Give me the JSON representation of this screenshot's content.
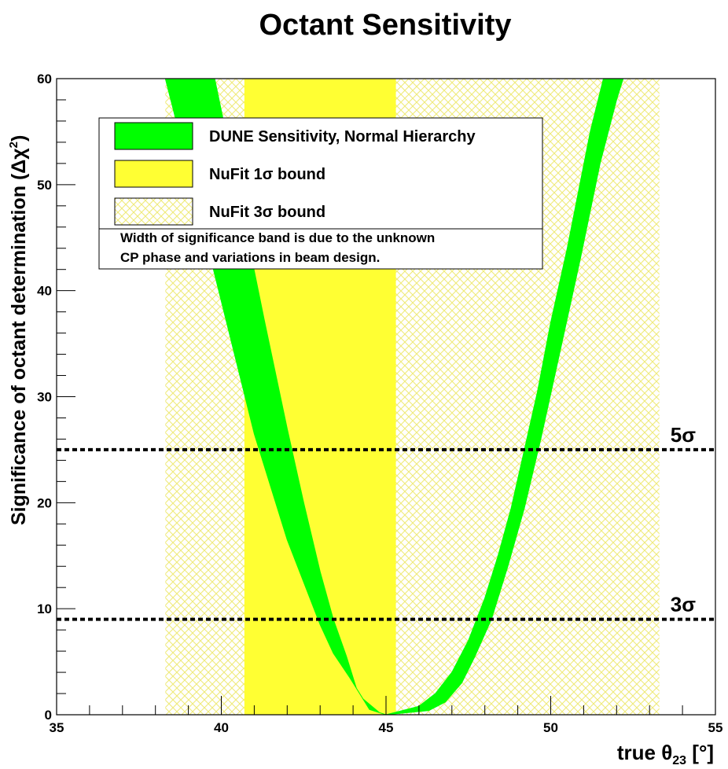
{
  "chart_data": {
    "type": "area",
    "title": "Octant Sensitivity",
    "xlabel": "true θ",
    "xlabel_sub": "23",
    "xlabel_unit": " [°]",
    "ylabel": "Significance of octant determination (Δχ",
    "ylabel_sup": "2",
    "ylabel_close": ")",
    "xlim": [
      35,
      55
    ],
    "ylim": [
      0,
      60
    ],
    "x_ticks": [
      "35",
      "40",
      "45",
      "50",
      "55"
    ],
    "y_ticks": [
      "0",
      "10",
      "20",
      "30",
      "40",
      "50",
      "60"
    ],
    "legend_placement": "top-left",
    "bands": [
      {
        "name": "NuFit 3σ bound",
        "range": [
          38.3,
          53.3
        ],
        "fill": "hatch",
        "color": "#ffff66"
      },
      {
        "name": "NuFit 1σ bound",
        "range": [
          40.7,
          45.3
        ],
        "fill": "solid",
        "color": "#ffff33"
      }
    ],
    "lines": [
      {
        "label": "5σ",
        "value": 25
      },
      {
        "label": "3σ",
        "value": 9
      }
    ],
    "series": [
      {
        "name": "DUNE Sensitivity, Normal Hierarchy",
        "color": "#00ff00",
        "left_lower": {
          "x": [
            38.3,
            39.0,
            40.0,
            41.0,
            42.0,
            43.0,
            43.4,
            43.9,
            44.3,
            44.8,
            45.0
          ],
          "y": [
            60,
            51.5,
            39,
            26.5,
            16.5,
            8.5,
            5.8,
            3.5,
            1.5,
            0.2,
            0
          ]
        },
        "left_upper": {
          "x": [
            39.8,
            40.5,
            41.3,
            42.0,
            42.5,
            43.0,
            43.4,
            43.8,
            44.1,
            44.5,
            45.0
          ],
          "y": [
            60,
            49.5,
            37.3,
            27,
            20,
            13.5,
            9,
            5.5,
            2.5,
            0.5,
            0
          ]
        },
        "right_upper": {
          "x": [
            45.0,
            46.0,
            46.5,
            47.0,
            47.5,
            48.0,
            48.4,
            48.8,
            49.2,
            49.6,
            50.0,
            50.5,
            51.2,
            51.6
          ],
          "y": [
            0,
            0.8,
            2.0,
            4.0,
            7.0,
            11.0,
            15.0,
            19.5,
            25.0,
            30.5,
            37.0,
            44.0,
            55.0,
            60
          ]
        },
        "right_lower": {
          "x": [
            45.0,
            46.3,
            46.8,
            47.3,
            47.7,
            48.2,
            48.7,
            49.2,
            49.7,
            50.3,
            50.9,
            51.5,
            52.0,
            52.2
          ],
          "y": [
            0,
            0.4,
            1.2,
            3.0,
            5.5,
            9.0,
            14.0,
            19.5,
            26.0,
            34.5,
            43.0,
            52.0,
            58.0,
            60
          ]
        }
      }
    ],
    "legend": [
      {
        "label": "DUNE Sensitivity, Normal Hierarchy",
        "swatch": "solid-green"
      },
      {
        "label": "NuFit 1σ bound",
        "swatch": "solid-yellow"
      },
      {
        "label": "NuFit 3σ bound",
        "swatch": "hatch-yellow"
      }
    ],
    "legend_note": [
      "Width of significance band is due to the unknown",
      "CP phase and variations in beam design."
    ]
  },
  "colors": {
    "green": "#00ff00",
    "yellow": "#ffff33",
    "hatch_yellow": "#f0ea7a",
    "axis": "#000000"
  }
}
